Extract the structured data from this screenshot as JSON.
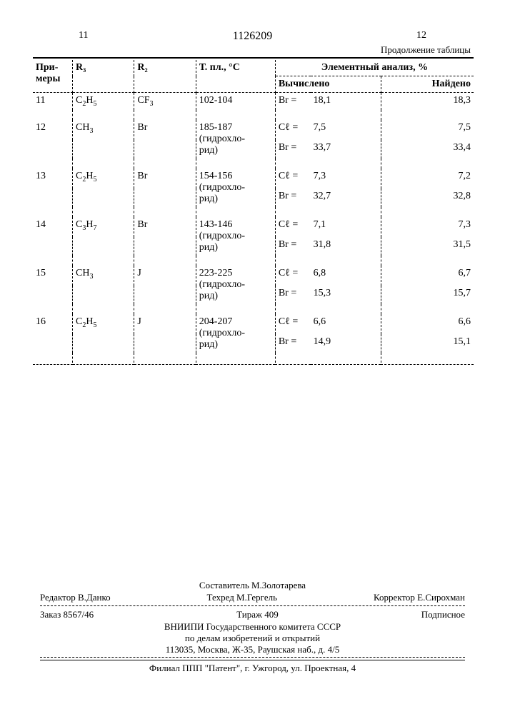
{
  "header": {
    "leftPage": "11",
    "rightPage": "12",
    "patent": "1126209",
    "continuation": "Продолжение таблицы"
  },
  "columns": {
    "c1": "При-меры",
    "c2": "R₃",
    "c3": "R₂",
    "c4": "Т. пл., °С",
    "c5": "Элементный анализ, %",
    "c5a": "Вычислено",
    "c5b": "Найдено"
  },
  "rows": [
    {
      "n": "11",
      "r3": "C₂H₅",
      "r2": "CF₃",
      "tp": "102-104",
      "calc": [
        [
          "Br =",
          "18,1"
        ]
      ],
      "found": [
        "18,3"
      ]
    },
    {
      "n": "12",
      "r3": "CH₃",
      "r2": "Br",
      "tp": "185-187\n(гидрохло-\nрид)",
      "calc": [
        [
          "Cℓ =",
          "7,5"
        ],
        [
          "Br =",
          "33,7"
        ]
      ],
      "found": [
        "7,5",
        "33,4"
      ]
    },
    {
      "n": "13",
      "r3": "C₂H₅",
      "r2": "Br",
      "tp": "154-156\n(гидрохло-\nрид)",
      "calc": [
        [
          "Cℓ =",
          "7,3"
        ],
        [
          "Br =",
          "32,7"
        ]
      ],
      "found": [
        "7,2",
        "32,8"
      ]
    },
    {
      "n": "14",
      "r3": "C₃H₇",
      "r2": "Br",
      "tp": "143-146\n(гидрохло-\nрид)",
      "calc": [
        [
          "Cℓ =",
          "7,1"
        ],
        [
          "Br =",
          "31,8"
        ]
      ],
      "found": [
        "7,3",
        "31,5"
      ]
    },
    {
      "n": "15",
      "r3": "CH₃",
      "r2": "J",
      "tp": "223-225\n(гидрохло-\nрид)",
      "calc": [
        [
          "Cℓ =",
          "6,8"
        ],
        [
          "Br =",
          "15,3"
        ]
      ],
      "found": [
        "6,7",
        "15,7"
      ]
    },
    {
      "n": "16",
      "r3": "C₂H₅",
      "r2": "J",
      "tp": "204-207\n(гидрохло-\nрид)",
      "calc": [
        [
          "Cℓ =",
          "6,6"
        ],
        [
          "Br =",
          "14,9"
        ]
      ],
      "found": [
        "6,6",
        "15,1"
      ]
    }
  ],
  "footer": {
    "compiler": "Составитель М.Золотарева",
    "editor": "Редактор В.Данко",
    "tech": "Техред М.Гергель",
    "corr": "Корректор Е.Сирохман",
    "order": "Заказ 8567/46",
    "tir": "Тираж 409",
    "sub": "Подписное",
    "org1": "ВНИИПИ Государственного комитета СССР",
    "org2": "по делам изобретений и открытий",
    "addr": "113035, Москва, Ж-35, Раушская наб., д. 4/5",
    "branch": "Филиал ППП \"Патент\", г. Ужгород, ул. Проектная, 4"
  }
}
